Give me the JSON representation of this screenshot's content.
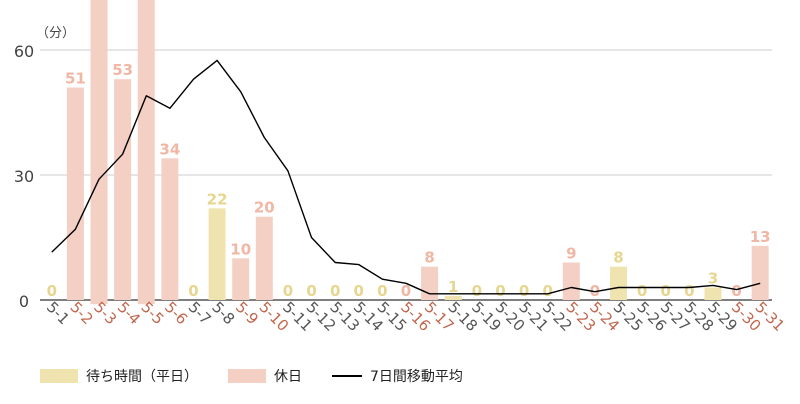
{
  "chart_data": {
    "type": "bar",
    "unit_label": "（分）",
    "ylim": [
      0,
      73
    ],
    "yticks": [
      0,
      30,
      60
    ],
    "grid": true,
    "legend_position": "bottom-left",
    "categories": [
      "5-1",
      "5-2",
      "5-3",
      "5-4",
      "5-5",
      "5-6",
      "5-7",
      "5-8",
      "5-9",
      "5-10",
      "5-11",
      "5-12",
      "5-13",
      "5-14",
      "5-15",
      "5-16",
      "5-17",
      "5-18",
      "5-19",
      "5-20",
      "5-21",
      "5-22",
      "5-23",
      "5-24",
      "5-25",
      "5-26",
      "5-27",
      "5-28",
      "5-29",
      "5-30",
      "5-31"
    ],
    "day_type": [
      "weekday",
      "holiday",
      "holiday",
      "holiday",
      "holiday",
      "holiday",
      "weekday",
      "weekday",
      "holiday",
      "holiday",
      "weekday",
      "weekday",
      "weekday",
      "weekday",
      "weekday",
      "holiday",
      "holiday",
      "weekday",
      "weekday",
      "weekday",
      "weekday",
      "weekday",
      "holiday",
      "holiday",
      "weekday",
      "weekday",
      "weekday",
      "weekday",
      "weekday",
      "holiday",
      "holiday"
    ],
    "values": [
      0,
      51,
      75,
      53,
      75,
      34,
      0,
      22,
      10,
      20,
      0,
      0,
      0,
      0,
      0,
      0,
      8,
      1,
      0,
      0,
      0,
      0,
      9,
      0,
      8,
      0,
      0,
      0,
      3,
      0,
      13
    ],
    "value_labels": [
      "0",
      "51",
      "",
      "53",
      "",
      "34",
      "0",
      "22",
      "10",
      "20",
      "0",
      "0",
      "0",
      "0",
      "0",
      "0",
      "8",
      "1",
      "0",
      "0",
      "0",
      "0",
      "9",
      "0",
      "8",
      "0",
      "0",
      "0",
      "3",
      "0",
      "13"
    ],
    "moving_average": [
      11.5,
      17,
      29,
      35,
      49,
      46,
      53,
      57.5,
      50,
      39,
      31,
      15,
      9,
      8.5,
      5,
      4,
      1.5,
      1.5,
      1.5,
      1.5,
      1.5,
      1.5,
      3,
      2,
      3,
      3,
      3,
      3,
      3.5,
      2.5,
      4
    ],
    "series": [
      {
        "name": "待ち時間（平日）",
        "color": "#efe4b0"
      },
      {
        "name": "休日",
        "color": "#f4d0c4"
      },
      {
        "name": "7日間移動平均",
        "color": "#000000"
      }
    ],
    "colors": {
      "weekday_label": "#555555",
      "holiday_label": "#c0674d",
      "weekday_value": "#e6d690",
      "holiday_value": "#f0b7a4"
    }
  }
}
